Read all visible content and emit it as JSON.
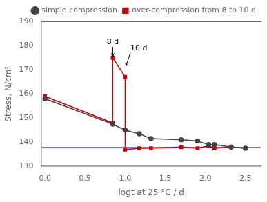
{
  "chart_data": {
    "type": "line",
    "xlabel": "logt at 25 °C / d",
    "ylabel": "Stress, N/cm²",
    "xlim": [
      -0.05,
      2.7
    ],
    "ylim": [
      130,
      190
    ],
    "xticks": [
      {
        "value": 0.0,
        "label": "0.0"
      },
      0.5,
      {
        "value": 1.0,
        "label": "1.0"
      },
      1.5,
      {
        "value": 2.0,
        "label": "2.0"
      },
      2.5
    ],
    "yticks": [
      130,
      140,
      150,
      160,
      170,
      180,
      190
    ],
    "grid": false,
    "legend": "upper right",
    "series": [
      {
        "name": "simple compression",
        "color": "#444444",
        "marker": "circle",
        "line_style": "solid",
        "x": [
          0.0,
          0.845,
          1.0,
          1.176,
          1.322,
          1.699,
          1.903,
          2.041,
          2.114,
          2.322,
          2.5
        ],
        "values": [
          158.0,
          147.5,
          145.0,
          143.5,
          141.5,
          141.0,
          140.5,
          139.0,
          139.0,
          138.0,
          137.5
        ]
      },
      {
        "name": "over-compression from 8 to 10 d",
        "color": "#cc0000",
        "marker": "square",
        "line_style": "solid",
        "x": [
          0.0,
          0.845,
          0.845,
          1.0,
          1.0,
          1.176,
          1.322,
          1.699,
          1.903,
          2.041,
          2.114,
          2.322,
          2.5
        ],
        "values": [
          159.0,
          148.0,
          175.0,
          167.0,
          137.0,
          137.5,
          137.5,
          138.0,
          137.5,
          138.5,
          137.5,
          138.0,
          137.5
        ]
      }
    ],
    "reference_lines": [
      {
        "y": 137.8,
        "color": "#4444ff"
      }
    ],
    "annotations": [
      {
        "text": "8 d",
        "x": 0.845,
        "y": 175.5,
        "text_x": 0.845,
        "text_y": 179.5,
        "align": "center"
      },
      {
        "text": "10 d",
        "x": 1.01,
        "y": 171.5,
        "text_x": 1.065,
        "text_y": 177.0,
        "align": "left"
      }
    ]
  }
}
